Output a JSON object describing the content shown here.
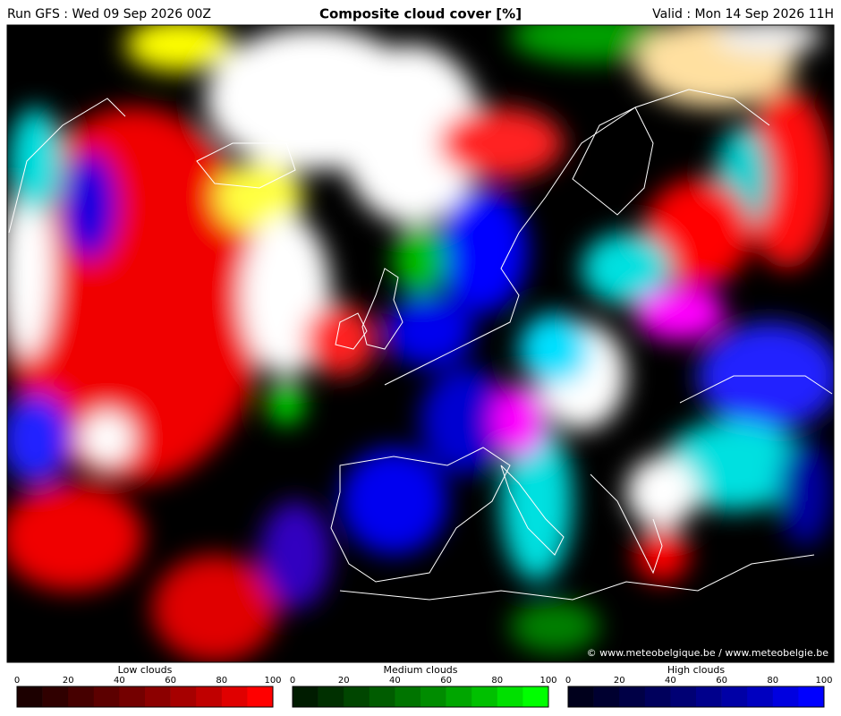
{
  "header": {
    "run": "Run GFS : Wed 09 Sep 2026 00Z",
    "title": "Composite cloud cover [%]",
    "valid": "Valid : Mon 14 Sep 2026 11H"
  },
  "credit": "© www.meteobelgique.be / www.meteobelgie.be",
  "legends": [
    {
      "title": "Low clouds",
      "ticks": [
        0,
        20,
        40,
        60,
        80,
        100
      ],
      "colors": [
        "#1c0000",
        "#300000",
        "#460000",
        "#5c0000",
        "#740000",
        "#8c0000",
        "#a60000",
        "#c00000",
        "#e00000",
        "#ff0000"
      ]
    },
    {
      "title": "Medium clouds",
      "ticks": [
        0,
        20,
        40,
        60,
        80,
        100
      ],
      "colors": [
        "#001c00",
        "#003000",
        "#004600",
        "#005c00",
        "#007400",
        "#008c00",
        "#00a600",
        "#00c000",
        "#00e000",
        "#00ff00"
      ]
    },
    {
      "title": "High clouds",
      "ticks": [
        0,
        20,
        40,
        60,
        80,
        100
      ],
      "colors": [
        "#00001c",
        "#000030",
        "#000046",
        "#00005c",
        "#000074",
        "#00008c",
        "#0000a6",
        "#0000c0",
        "#0000e0",
        "#0000ff"
      ]
    }
  ]
}
